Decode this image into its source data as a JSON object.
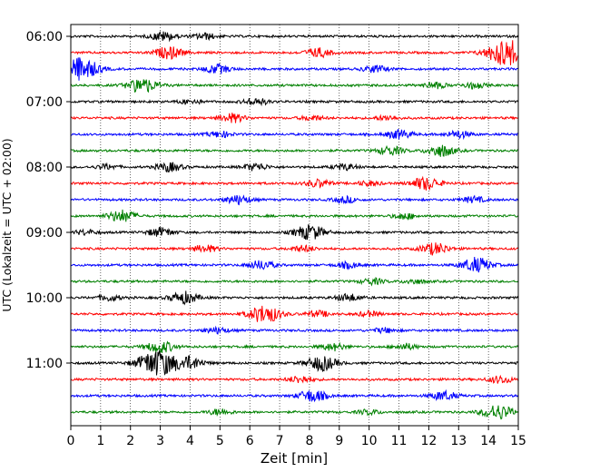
{
  "chart_data": {
    "type": "line",
    "chart_kind": "helicorder",
    "title": "",
    "xlabel": "Zeit  [min]",
    "ylabel": "UTC (Lokalzeit = UTC + 02:00)",
    "xlim": [
      0,
      15
    ],
    "x_ticks": [
      "0",
      "1",
      "2",
      "3",
      "4",
      "5",
      "6",
      "7",
      "8",
      "9",
      "10",
      "11",
      "12",
      "13",
      "14",
      "15"
    ],
    "y_tick_labels": [
      "06:00",
      "07:00",
      "08:00",
      "09:00",
      "10:00",
      "11:00"
    ],
    "y_tick_rows": [
      0,
      4,
      8,
      12,
      16,
      20
    ],
    "rows_per_hour": 4,
    "minutes_per_row": 15,
    "trace_count": 24,
    "trace_colors": [
      "#000000",
      "#ff0000",
      "#0000ff",
      "#008000"
    ],
    "grid": {
      "vertical_dotted": true,
      "every_minutes": 1
    },
    "events": [
      {
        "row": 0,
        "minute": 3.1,
        "amp": 1.5
      },
      {
        "row": 0,
        "minute": 4.5,
        "amp": 1.0
      },
      {
        "row": 1,
        "minute": 3.3,
        "amp": 2.0
      },
      {
        "row": 1,
        "minute": 8.3,
        "amp": 1.5
      },
      {
        "row": 1,
        "minute": 14.6,
        "amp": 4.5
      },
      {
        "row": 2,
        "minute": 0.3,
        "amp": 4.0
      },
      {
        "row": 2,
        "minute": 4.9,
        "amp": 1.5
      },
      {
        "row": 2,
        "minute": 10.2,
        "amp": 1.2
      },
      {
        "row": 3,
        "minute": 2.4,
        "amp": 2.5
      },
      {
        "row": 3,
        "minute": 12.2,
        "amp": 1.0
      },
      {
        "row": 3,
        "minute": 13.5,
        "amp": 1.0
      },
      {
        "row": 4,
        "minute": 4.0,
        "amp": 0.8
      },
      {
        "row": 4,
        "minute": 6.2,
        "amp": 1.2
      },
      {
        "row": 5,
        "minute": 5.4,
        "amp": 1.5
      },
      {
        "row": 5,
        "minute": 8.1,
        "amp": 0.8
      },
      {
        "row": 5,
        "minute": 10.6,
        "amp": 0.8
      },
      {
        "row": 6,
        "minute": 5.0,
        "amp": 1.0
      },
      {
        "row": 6,
        "minute": 11.0,
        "amp": 1.5
      },
      {
        "row": 6,
        "minute": 13.0,
        "amp": 1.2
      },
      {
        "row": 7,
        "minute": 10.7,
        "amp": 1.5
      },
      {
        "row": 7,
        "minute": 12.4,
        "amp": 2.0
      },
      {
        "row": 8,
        "minute": 1.2,
        "amp": 0.8
      },
      {
        "row": 8,
        "minute": 3.3,
        "amp": 1.5
      },
      {
        "row": 8,
        "minute": 6.2,
        "amp": 1.2
      },
      {
        "row": 8,
        "minute": 9.2,
        "amp": 1.0
      },
      {
        "row": 9,
        "minute": 8.3,
        "amp": 1.3
      },
      {
        "row": 9,
        "minute": 10.0,
        "amp": 0.8
      },
      {
        "row": 9,
        "minute": 11.9,
        "amp": 2.2
      },
      {
        "row": 10,
        "minute": 5.6,
        "amp": 1.5
      },
      {
        "row": 10,
        "minute": 9.2,
        "amp": 1.0
      },
      {
        "row": 10,
        "minute": 13.5,
        "amp": 1.0
      },
      {
        "row": 11,
        "minute": 1.7,
        "amp": 2.0
      },
      {
        "row": 11,
        "minute": 11.2,
        "amp": 1.0
      },
      {
        "row": 12,
        "minute": 0.5,
        "amp": 0.8
      },
      {
        "row": 12,
        "minute": 3.0,
        "amp": 1.5
      },
      {
        "row": 12,
        "minute": 8.0,
        "amp": 2.5
      },
      {
        "row": 13,
        "minute": 4.5,
        "amp": 1.2
      },
      {
        "row": 13,
        "minute": 7.8,
        "amp": 1.0
      },
      {
        "row": 13,
        "minute": 12.2,
        "amp": 2.0
      },
      {
        "row": 14,
        "minute": 6.4,
        "amp": 1.5
      },
      {
        "row": 14,
        "minute": 9.3,
        "amp": 1.0
      },
      {
        "row": 14,
        "minute": 13.6,
        "amp": 2.5
      },
      {
        "row": 15,
        "minute": 10.1,
        "amp": 1.0
      },
      {
        "row": 15,
        "minute": 11.5,
        "amp": 0.8
      },
      {
        "row": 16,
        "minute": 1.3,
        "amp": 1.0
      },
      {
        "row": 16,
        "minute": 3.8,
        "amp": 2.0
      },
      {
        "row": 16,
        "minute": 9.3,
        "amp": 1.2
      },
      {
        "row": 17,
        "minute": 6.5,
        "amp": 3.0
      },
      {
        "row": 17,
        "minute": 8.3,
        "amp": 1.0
      },
      {
        "row": 17,
        "minute": 10.0,
        "amp": 0.8
      },
      {
        "row": 18,
        "minute": 4.9,
        "amp": 1.0
      },
      {
        "row": 18,
        "minute": 10.5,
        "amp": 0.8
      },
      {
        "row": 19,
        "minute": 3.0,
        "amp": 2.0
      },
      {
        "row": 19,
        "minute": 8.8,
        "amp": 1.2
      },
      {
        "row": 19,
        "minute": 11.2,
        "amp": 1.0
      },
      {
        "row": 20,
        "minute": 2.9,
        "amp": 4.5
      },
      {
        "row": 20,
        "minute": 4.0,
        "amp": 2.0
      },
      {
        "row": 20,
        "minute": 8.4,
        "amp": 2.5
      },
      {
        "row": 21,
        "minute": 7.7,
        "amp": 1.2
      },
      {
        "row": 21,
        "minute": 14.4,
        "amp": 1.2
      },
      {
        "row": 22,
        "minute": 8.1,
        "amp": 2.0
      },
      {
        "row": 22,
        "minute": 12.5,
        "amp": 1.5
      },
      {
        "row": 23,
        "minute": 5.0,
        "amp": 1.0
      },
      {
        "row": 23,
        "minute": 10.0,
        "amp": 0.8
      },
      {
        "row": 23,
        "minute": 14.3,
        "amp": 2.5
      }
    ]
  }
}
